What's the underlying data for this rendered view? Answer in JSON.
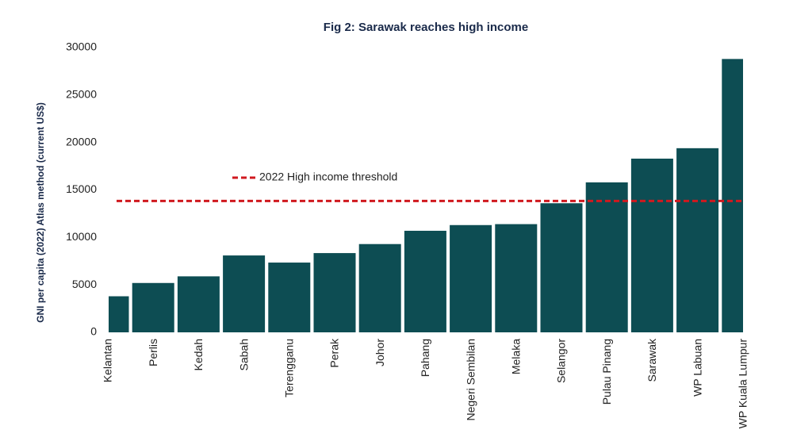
{
  "chart_data": {
    "type": "bar",
    "title": "Fig 2: Sarawak reaches high income",
    "y_label": "GNI per capita (2022) Atlas method (current US$)",
    "categories": [
      "Kelantan",
      "Perlis",
      "Kedah",
      "Sabah",
      "Terengganu",
      "Perak",
      "Johor",
      "Pahang",
      "Negeri Sembilan",
      "Melaka",
      "Selangor",
      "Pulau Pinang",
      "Sarawak",
      "WP Labuan",
      "WP Kuala Lumpur"
    ],
    "values": [
      3800,
      5200,
      5900,
      8100,
      7350,
      8350,
      9300,
      10700,
      11300,
      11400,
      13600,
      15800,
      18300,
      19400,
      28800
    ],
    "color": "#0d4d53",
    "threshold": {
      "name": "2022 High income threshold",
      "value": 13845,
      "color": "#d0191f"
    },
    "ylim": [
      0,
      30000
    ],
    "yticks": [
      0,
      5000,
      10000,
      15000,
      20000,
      25000,
      30000
    ],
    "grid": false
  }
}
